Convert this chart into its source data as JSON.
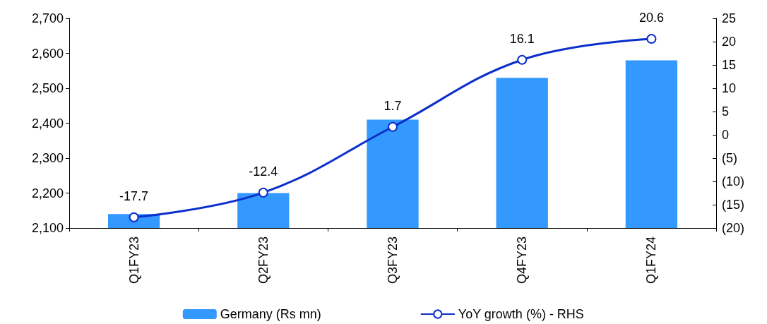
{
  "chart_data": {
    "type": "bar",
    "categories": [
      "Q1FY23",
      "Q2FY23",
      "Q3FY23",
      "Q4FY23",
      "Q1FY24"
    ],
    "series": [
      {
        "name": "Germany (Rs mn)",
        "color": "#3399ff",
        "values": [
          2140,
          2200,
          2410,
          2530,
          2580
        ]
      },
      {
        "name": "YoY growth (%) - RHS",
        "type": "line",
        "axis": "y2",
        "color": "#0b2fcc",
        "marker": "circle",
        "values": [
          -17.7,
          -12.4,
          1.7,
          16.1,
          20.6
        ],
        "value_labels": [
          "-17.7",
          "-12.4",
          "1.7",
          "16.1",
          "20.6"
        ]
      }
    ],
    "ylim": [
      2100,
      2700
    ],
    "yticks": [
      {
        "value": 2100,
        "label": "2,100"
      },
      {
        "value": 2200,
        "label": "2,200"
      },
      {
        "value": 2300,
        "label": "2,300"
      },
      {
        "value": 2400,
        "label": "2,400"
      },
      {
        "value": 2500,
        "label": "2,500"
      },
      {
        "value": 2600,
        "label": "2,600"
      },
      {
        "value": 2700,
        "label": "2,700"
      }
    ],
    "y2lim": [
      -20,
      25
    ],
    "y2ticks": [
      {
        "value": -20,
        "label": "(20)"
      },
      {
        "value": -15,
        "label": "(15)"
      },
      {
        "value": -10,
        "label": "(10)"
      },
      {
        "value": -5,
        "label": "(5)"
      },
      0,
      5,
      10,
      15,
      20,
      25
    ],
    "grid": false,
    "legend": "bottom"
  }
}
